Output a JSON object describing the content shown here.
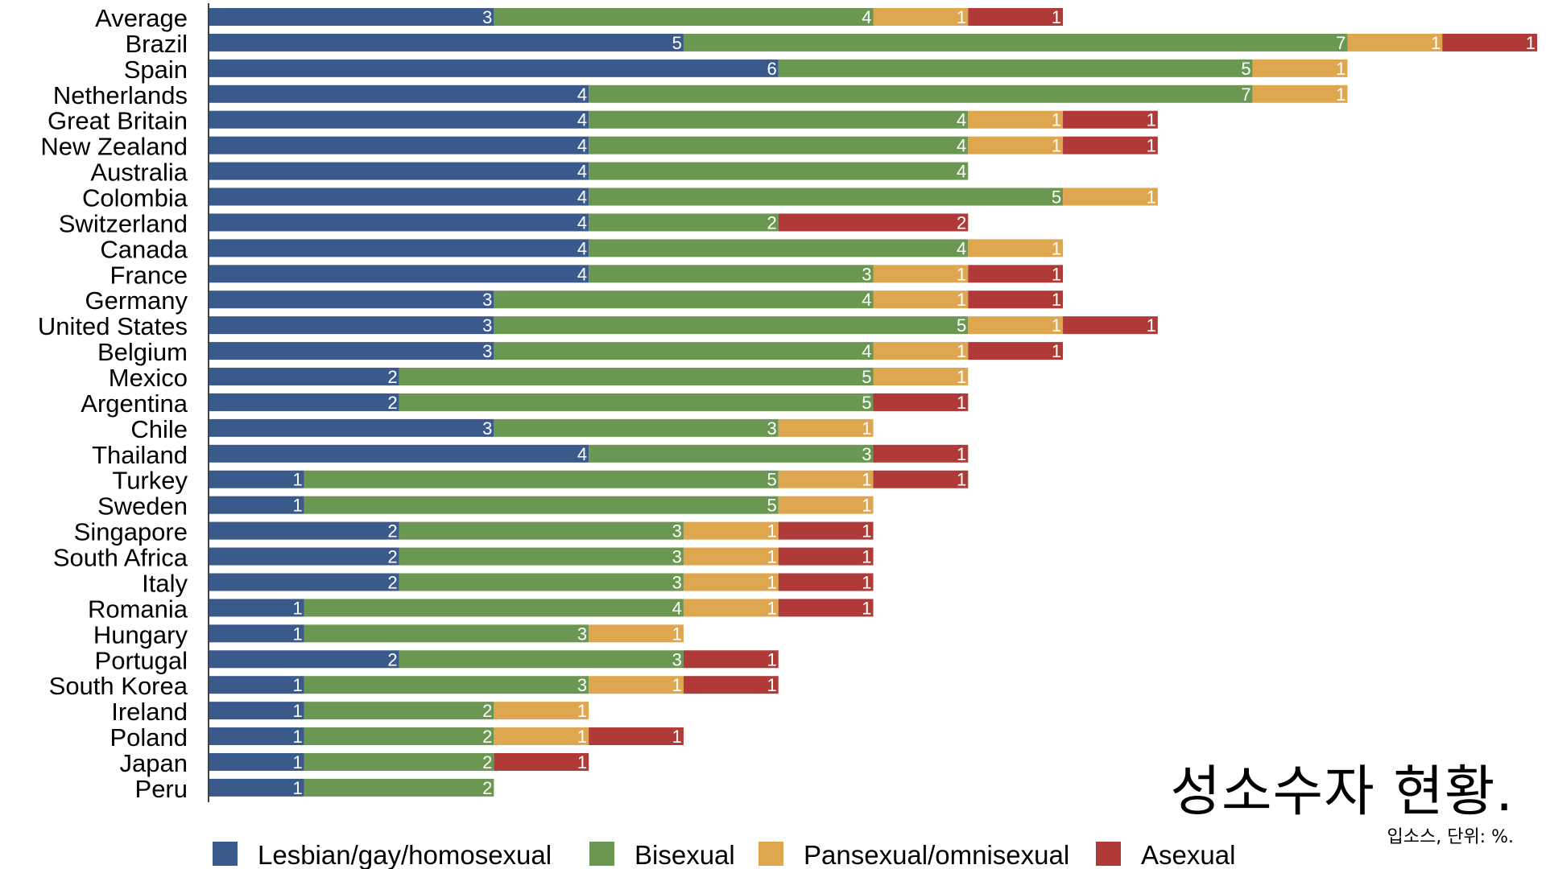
{
  "chart_data": {
    "type": "bar",
    "orientation": "horizontal",
    "stacked": true,
    "title": "성소수자 현황.",
    "subtitle": "입소스, 단위: %.",
    "xlabel": "",
    "ylabel": "",
    "xlim": [
      0,
      14
    ],
    "grid": false,
    "legend_position": "bottom",
    "categories": [
      "Average",
      "Brazil",
      "Spain",
      "Netherlands",
      "Great Britain",
      "New Zealand",
      "Australia",
      "Colombia",
      "Switzerland",
      "Canada",
      "France",
      "Germany",
      "United States",
      "Belgium",
      "Mexico",
      "Argentina",
      "Chile",
      "Thailand",
      "Turkey",
      "Sweden",
      "Singapore",
      "South Africa",
      "Italy",
      "Romania",
      "Hungary",
      "Portugal",
      "South Korea",
      "Ireland",
      "Poland",
      "Japan",
      "Peru"
    ],
    "series": [
      {
        "name": "Lesbian/gay/homosexual",
        "color": "#3a5a8c",
        "values": [
          3,
          5,
          6,
          4,
          4,
          4,
          4,
          4,
          4,
          4,
          4,
          3,
          3,
          3,
          2,
          2,
          3,
          4,
          1,
          1,
          2,
          2,
          2,
          1,
          1,
          2,
          1,
          1,
          1,
          1,
          1
        ]
      },
      {
        "name": "Bisexual",
        "color": "#6a9752",
        "values": [
          4,
          7,
          5,
          7,
          4,
          4,
          4,
          5,
          2,
          4,
          3,
          4,
          5,
          4,
          5,
          5,
          3,
          3,
          5,
          5,
          3,
          3,
          3,
          4,
          3,
          3,
          3,
          2,
          2,
          2,
          2
        ]
      },
      {
        "name": "Pansexual/omnisexual",
        "color": "#dea64f",
        "values": [
          1,
          1,
          1,
          1,
          1,
          1,
          0,
          1,
          0,
          1,
          1,
          1,
          1,
          1,
          1,
          0,
          1,
          0,
          1,
          1,
          1,
          1,
          1,
          1,
          1,
          0,
          1,
          1,
          1,
          0,
          0
        ]
      },
      {
        "name": "Asexual",
        "color": "#b03a38",
        "values": [
          1,
          1,
          0,
          0,
          1,
          1,
          0,
          0,
          2,
          0,
          1,
          1,
          1,
          1,
          0,
          1,
          0,
          1,
          1,
          0,
          1,
          1,
          1,
          1,
          0,
          1,
          1,
          0,
          1,
          1,
          0
        ]
      }
    ]
  }
}
